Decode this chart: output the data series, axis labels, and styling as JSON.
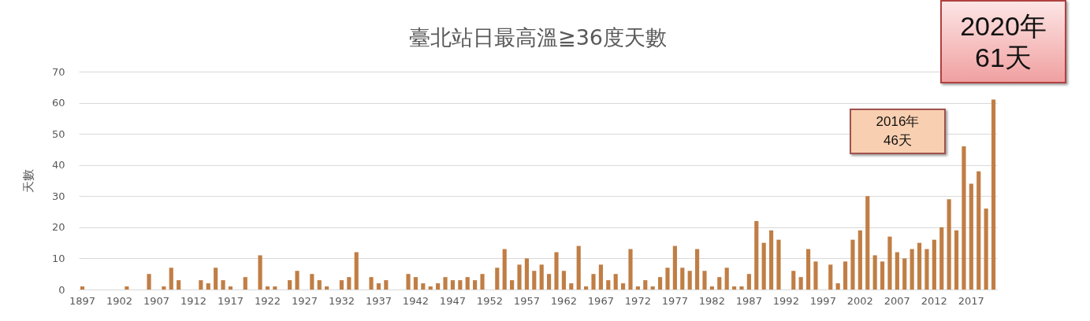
{
  "chart_data": {
    "type": "bar",
    "title": "臺北站日最高溫≧36度天數",
    "ylabel": "天數",
    "categories": [
      "1897",
      null,
      null,
      null,
      null,
      "1902",
      null,
      null,
      null,
      null,
      "1907",
      null,
      null,
      null,
      null,
      "1912",
      null,
      null,
      null,
      null,
      "1917",
      null,
      null,
      null,
      null,
      "1922",
      null,
      null,
      null,
      null,
      "1927",
      null,
      null,
      null,
      null,
      "1932",
      null,
      null,
      null,
      null,
      "1937",
      null,
      null,
      null,
      null,
      "1942",
      null,
      null,
      null,
      null,
      "1947",
      null,
      null,
      null,
      null,
      "1952",
      null,
      null,
      null,
      null,
      "1957",
      null,
      null,
      null,
      null,
      "1962",
      null,
      null,
      null,
      null,
      "1967",
      null,
      null,
      null,
      null,
      "1972",
      null,
      null,
      null,
      null,
      "1977",
      null,
      null,
      null,
      null,
      "1982",
      null,
      null,
      null,
      null,
      "1987",
      null,
      null,
      null,
      null,
      "1992",
      null,
      null,
      null,
      null,
      "1997",
      null,
      null,
      null,
      null,
      "2002",
      null,
      null,
      null,
      null,
      "2007",
      null,
      null,
      null,
      null,
      "2012",
      null,
      null,
      null,
      null,
      "2017",
      null,
      null,
      null
    ],
    "values": [
      1,
      0,
      0,
      0,
      0,
      0,
      1,
      0,
      0,
      5,
      0,
      1,
      7,
      3,
      0,
      0,
      3,
      2,
      7,
      3,
      1,
      0,
      4,
      0,
      11,
      1,
      1,
      0,
      3,
      6,
      0,
      5,
      3,
      1,
      0,
      3,
      4,
      12,
      0,
      4,
      2,
      3,
      0,
      0,
      5,
      4,
      2,
      1,
      2,
      4,
      3,
      3,
      4,
      3,
      5,
      0,
      7,
      13,
      3,
      8,
      10,
      6,
      8,
      5,
      12,
      6,
      2,
      14,
      1,
      5,
      8,
      3,
      5,
      2,
      13,
      1,
      3,
      1,
      4,
      7,
      14,
      7,
      6,
      13,
      6,
      1,
      4,
      7,
      1,
      1,
      5,
      22,
      15,
      19,
      16,
      0,
      6,
      4,
      13,
      9,
      0,
      8,
      2,
      9,
      16,
      19,
      30,
      11,
      9,
      17,
      12,
      10,
      13,
      15,
      13,
      16,
      20,
      29,
      19,
      46,
      34,
      38,
      26,
      61
    ],
    "color": "#c07e45",
    "ylim": [
      0,
      70
    ],
    "yticks": [
      0,
      10,
      20,
      30,
      40,
      50,
      60,
      70
    ],
    "grid": "y",
    "annotations": [
      "2016年\n46天",
      "2020年\n61天"
    ]
  }
}
